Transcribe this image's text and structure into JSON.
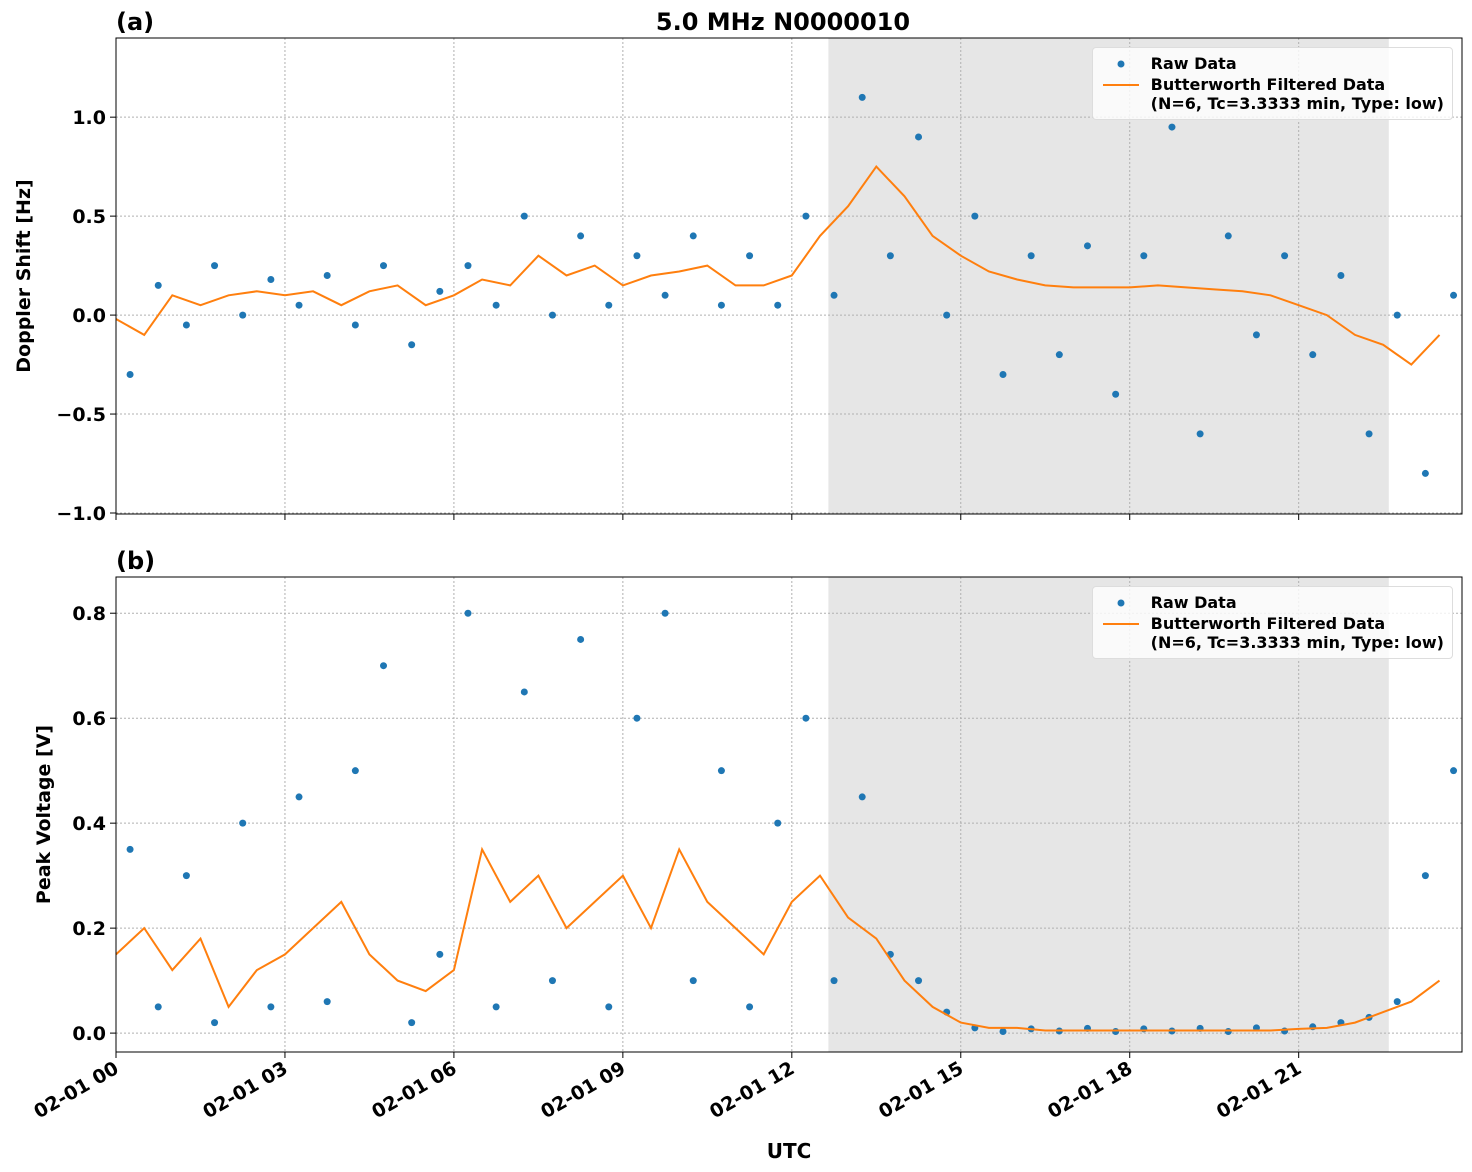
{
  "chart_data": [
    {
      "type": "scatter",
      "title": "5.0 MHz N0000010",
      "panel_label": "(a)",
      "ylabel": "Doppler Shift [Hz]",
      "xlim": [
        0,
        23.9
      ],
      "ylim": [
        -1.005,
        1.4
      ],
      "xticks": [
        0,
        3,
        6,
        9,
        12,
        15,
        18,
        21
      ],
      "yticks": [
        {
          "value": -1.0,
          "label": "−1.0"
        },
        {
          "value": -0.5,
          "label": "−0.5"
        },
        {
          "value": 0,
          "label": "0.0"
        },
        0.5,
        {
          "value": 1.0,
          "label": "1.0"
        }
      ],
      "grid": true,
      "legend": "upper right",
      "shaded_xrange": [
        12.65,
        22.6
      ],
      "series": [
        {
          "name": "Raw Data",
          "color": "#1f77b4",
          "mark": "dot",
          "x": [
            0.25,
            0.75,
            1.25,
            1.75,
            2.25,
            2.75,
            3.25,
            3.75,
            4.25,
            4.75,
            5.25,
            5.75,
            6.25,
            6.75,
            7.25,
            7.75,
            8.25,
            8.75,
            9.25,
            9.75,
            10.25,
            10.75,
            11.25,
            11.75,
            12.25,
            12.75,
            13.25,
            13.75,
            14.25,
            14.75,
            15.25,
            15.75,
            16.25,
            16.75,
            17.25,
            17.75,
            18.25,
            18.75,
            19.25,
            19.75,
            20.25,
            20.75,
            21.25,
            21.75,
            22.25,
            22.75,
            23.25,
            23.75
          ],
          "values": [
            -0.3,
            0.15,
            -0.05,
            0.25,
            0.0,
            0.18,
            0.05,
            0.2,
            -0.05,
            0.25,
            -0.15,
            0.12,
            0.25,
            0.05,
            0.5,
            0.0,
            0.4,
            0.05,
            0.3,
            0.1,
            0.4,
            0.05,
            0.3,
            0.05,
            0.5,
            0.1,
            1.1,
            0.3,
            0.9,
            0.0,
            0.5,
            -0.3,
            0.3,
            -0.2,
            0.35,
            -0.4,
            0.3,
            0.95,
            -0.6,
            0.4,
            -0.1,
            0.3,
            -0.2,
            0.2,
            -0.6,
            0.0,
            -0.8,
            0.1
          ]
        },
        {
          "name": "Butterworth Filtered Data\n(N=6, Tc=3.3333 min, Type: low)",
          "color": "#ff7f0e",
          "mark": "line",
          "x": [
            0,
            0.5,
            1,
            1.5,
            2,
            2.5,
            3,
            3.5,
            4,
            4.5,
            5,
            5.5,
            6,
            6.5,
            7,
            7.5,
            8,
            8.5,
            9,
            9.5,
            10,
            10.5,
            11,
            11.5,
            12,
            12.5,
            13,
            13.5,
            14,
            14.5,
            15,
            15.5,
            16,
            16.5,
            17,
            17.5,
            18,
            18.5,
            19,
            19.5,
            20,
            20.5,
            21,
            21.5,
            22,
            22.5,
            23,
            23.5
          ],
          "values": [
            -0.02,
            -0.1,
            0.1,
            0.05,
            0.1,
            0.12,
            0.1,
            0.12,
            0.05,
            0.12,
            0.15,
            0.05,
            0.1,
            0.18,
            0.15,
            0.3,
            0.2,
            0.25,
            0.15,
            0.2,
            0.22,
            0.25,
            0.15,
            0.15,
            0.2,
            0.4,
            0.55,
            0.75,
            0.6,
            0.4,
            0.3,
            0.22,
            0.18,
            0.15,
            0.14,
            0.14,
            0.14,
            0.15,
            0.14,
            0.13,
            0.12,
            0.1,
            0.05,
            0.0,
            -0.1,
            -0.15,
            -0.25,
            -0.1
          ]
        }
      ]
    },
    {
      "type": "scatter",
      "panel_label": "(b)",
      "ylabel": "Peak Voltage [V]",
      "xlabel": "UTC",
      "xlim": [
        0,
        23.9
      ],
      "ylim": [
        -0.036,
        0.869
      ],
      "xticks": [
        {
          "value": 0,
          "label": "02-01 00"
        },
        {
          "value": 3,
          "label": "02-01 03"
        },
        {
          "value": 6,
          "label": "02-01 06"
        },
        {
          "value": 9,
          "label": "02-01 09"
        },
        {
          "value": 12,
          "label": "02-01 12"
        },
        {
          "value": 15,
          "label": "02-01 15"
        },
        {
          "value": 18,
          "label": "02-01 18"
        },
        {
          "value": 21,
          "label": "02-01 21"
        }
      ],
      "yticks": [
        {
          "value": 0,
          "label": "0.0"
        },
        0.2,
        0.4,
        0.6,
        0.8
      ],
      "grid": true,
      "legend": "upper right",
      "shaded_xrange": [
        12.65,
        22.6
      ],
      "series": [
        {
          "name": "Raw Data",
          "color": "#1f77b4",
          "mark": "dot",
          "x": [
            0.25,
            0.75,
            1.25,
            1.75,
            2.25,
            2.75,
            3.25,
            3.75,
            4.25,
            4.75,
            5.25,
            5.75,
            6.25,
            6.75,
            7.25,
            7.75,
            8.25,
            8.75,
            9.25,
            9.75,
            10.25,
            10.75,
            11.25,
            11.75,
            12.25,
            12.75,
            13.25,
            13.75,
            14.25,
            14.75,
            15.25,
            15.75,
            16.25,
            16.75,
            17.25,
            17.75,
            18.25,
            18.75,
            19.25,
            19.75,
            20.25,
            20.75,
            21.25,
            21.75,
            22.25,
            22.75,
            23.25,
            23.75
          ],
          "values": [
            0.35,
            0.05,
            0.3,
            0.02,
            0.4,
            0.05,
            0.45,
            0.06,
            0.5,
            0.7,
            0.02,
            0.15,
            0.8,
            0.05,
            0.65,
            0.1,
            0.75,
            0.05,
            0.6,
            0.8,
            0.1,
            0.5,
            0.05,
            0.4,
            0.6,
            0.1,
            0.45,
            0.15,
            0.1,
            0.04,
            0.01,
            0.003,
            0.008,
            0.004,
            0.009,
            0.003,
            0.008,
            0.004,
            0.009,
            0.003,
            0.01,
            0.004,
            0.012,
            0.02,
            0.03,
            0.06,
            0.3,
            0.5
          ]
        },
        {
          "name": "Butterworth Filtered Data\n(N=6, Tc=3.3333 min, Type: low)",
          "color": "#ff7f0e",
          "mark": "line",
          "x": [
            0,
            0.5,
            1,
            1.5,
            2,
            2.5,
            3,
            3.5,
            4,
            4.5,
            5,
            5.5,
            6,
            6.5,
            7,
            7.5,
            8,
            8.5,
            9,
            9.5,
            10,
            10.5,
            11,
            11.5,
            12,
            12.5,
            13,
            13.5,
            14,
            14.5,
            15,
            15.5,
            16,
            16.5,
            17,
            17.5,
            18,
            18.5,
            19,
            19.5,
            20,
            20.5,
            21,
            21.5,
            22,
            22.5,
            23,
            23.5
          ],
          "values": [
            0.15,
            0.2,
            0.12,
            0.18,
            0.05,
            0.12,
            0.15,
            0.2,
            0.25,
            0.15,
            0.1,
            0.08,
            0.12,
            0.35,
            0.25,
            0.3,
            0.2,
            0.25,
            0.3,
            0.2,
            0.35,
            0.25,
            0.2,
            0.15,
            0.25,
            0.3,
            0.22,
            0.18,
            0.1,
            0.05,
            0.02,
            0.01,
            0.01,
            0.005,
            0.005,
            0.005,
            0.005,
            0.005,
            0.005,
            0.005,
            0.005,
            0.005,
            0.008,
            0.01,
            0.02,
            0.04,
            0.06,
            0.1
          ]
        }
      ]
    }
  ]
}
